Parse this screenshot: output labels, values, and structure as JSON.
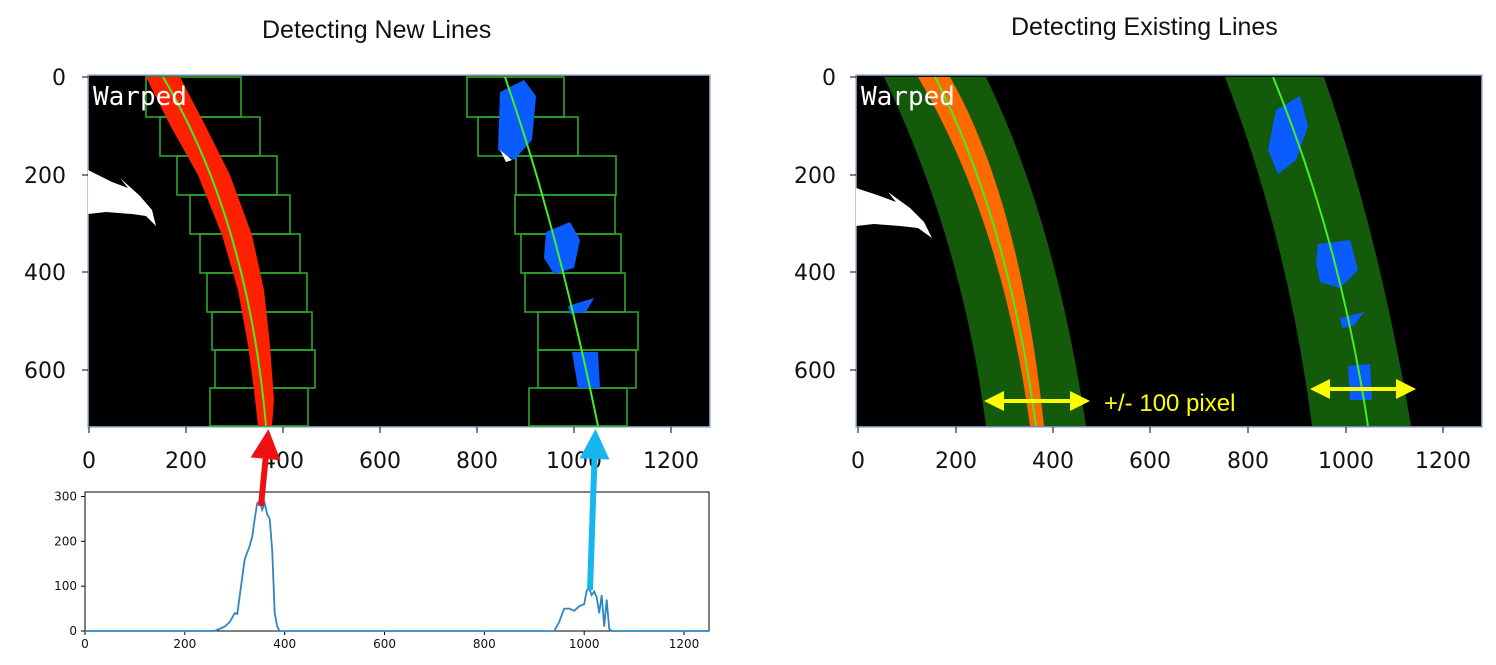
{
  "titles": {
    "left": "Detecting New Lines",
    "right": "Detecting Existing Lines"
  },
  "overlay_label": "Warped",
  "margin_annotation": "+/- 100 pixel",
  "image_axes": {
    "x_ticks": [
      0,
      200,
      400,
      600,
      800,
      1000,
      1200
    ],
    "y_ticks": [
      0,
      200,
      400,
      600
    ],
    "xlim": [
      0,
      1280
    ],
    "ylim": [
      0,
      720
    ]
  },
  "colors": {
    "left_lane_pixels": "#ff2000",
    "left_lane_pixels_existing": "#ff6a00",
    "right_lane_pixels": "#0a5cff",
    "fit_line": "#44ee22",
    "window_box": "#2ca82c",
    "search_band": "#135a0a",
    "histogram_line": "#2e86c1",
    "red_arrow": "#ee1111",
    "blue_arrow": "#17b6ee",
    "annotation": "#ffff00"
  },
  "chart_data": {
    "type": "line",
    "x": [
      0,
      260,
      280,
      290,
      300,
      305,
      310,
      320,
      330,
      335,
      340,
      345,
      350,
      355,
      360,
      365,
      370,
      375,
      380,
      385,
      390,
      400,
      940,
      950,
      960,
      970,
      980,
      990,
      1000,
      1005,
      1010,
      1015,
      1020,
      1025,
      1030,
      1035,
      1040,
      1045,
      1050,
      1055,
      1060,
      1250
    ],
    "y": [
      0,
      0,
      10,
      20,
      40,
      38,
      80,
      160,
      190,
      210,
      250,
      285,
      290,
      270,
      285,
      260,
      250,
      180,
      40,
      10,
      0,
      0,
      0,
      20,
      50,
      50,
      45,
      55,
      60,
      90,
      95,
      80,
      88,
      75,
      40,
      80,
      10,
      70,
      5,
      0,
      0,
      0
    ],
    "xlim": [
      0,
      1250
    ],
    "ylim": [
      0,
      310
    ],
    "x_ticks": [
      0,
      200,
      400,
      600,
      800,
      1000,
      1200
    ],
    "y_ticks": [
      0,
      100,
      200,
      300
    ],
    "title": "",
    "xlabel": "",
    "ylabel": ""
  }
}
